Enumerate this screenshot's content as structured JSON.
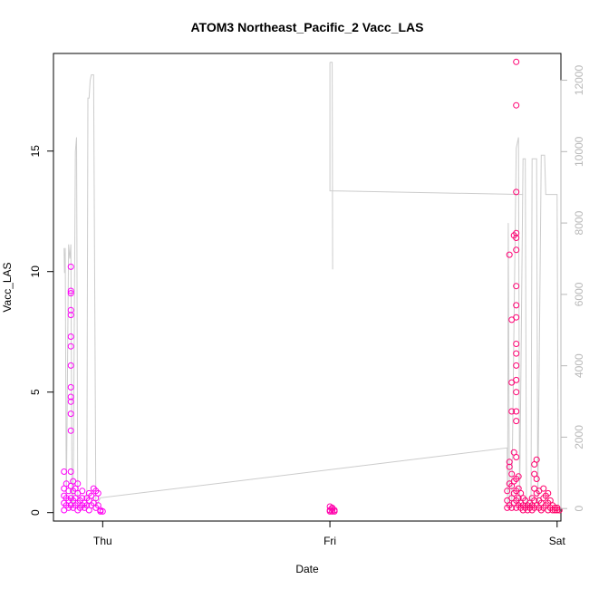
{
  "chart_data": {
    "type": "scatter",
    "title": "ATOM3 Northeast_Pacific_2 Vacc_LAS",
    "xlabel": "Date",
    "ylabel": "Vacc_LAS",
    "x_ticks": [
      "Thu",
      "Fri",
      "Sat"
    ],
    "x_range_days": [
      3.7833,
      6.0167
    ],
    "y_left": {
      "lim": [
        -0.35,
        19.05
      ],
      "ticks": [
        0,
        5,
        10,
        15
      ]
    },
    "y_right": {
      "lim": [
        -350,
        12750
      ],
      "ticks": [
        0,
        2000,
        4000,
        6000,
        8000,
        10000,
        12000
      ],
      "color": "#b8b8b8"
    },
    "grid": false,
    "legend": "none",
    "series": [
      {
        "role": "points",
        "axis": "left",
        "marker": "open-circle",
        "color_start": "#ff00ff",
        "color_end": "#ff0066",
        "points": [
          [
            3.83,
            0.1
          ],
          [
            3.83,
            0.4
          ],
          [
            3.83,
            0.7
          ],
          [
            3.83,
            1.0
          ],
          [
            3.83,
            1.7
          ],
          [
            3.84,
            0.3
          ],
          [
            3.84,
            0.6
          ],
          [
            3.84,
            1.2
          ],
          [
            3.85,
            0.2
          ],
          [
            3.85,
            0.5
          ],
          [
            3.85,
            0.9
          ],
          [
            3.86,
            0.3
          ],
          [
            3.86,
            0.6
          ],
          [
            3.86,
            1.1
          ],
          [
            3.86,
            1.7
          ],
          [
            3.86,
            3.4
          ],
          [
            3.86,
            4.1
          ],
          [
            3.86,
            4.6
          ],
          [
            3.86,
            4.8
          ],
          [
            3.86,
            5.2
          ],
          [
            3.86,
            6.1
          ],
          [
            3.86,
            6.9
          ],
          [
            3.86,
            7.3
          ],
          [
            3.86,
            8.2
          ],
          [
            3.86,
            8.4
          ],
          [
            3.86,
            9.1
          ],
          [
            3.86,
            9.2
          ],
          [
            3.86,
            10.2
          ],
          [
            3.87,
            0.2
          ],
          [
            3.87,
            0.5
          ],
          [
            3.87,
            0.9
          ],
          [
            3.87,
            1.3
          ],
          [
            3.88,
            0.3
          ],
          [
            3.88,
            0.6
          ],
          [
            3.88,
            1.0
          ],
          [
            3.89,
            0.1
          ],
          [
            3.89,
            0.4
          ],
          [
            3.89,
            0.8
          ],
          [
            3.89,
            1.2
          ],
          [
            3.9,
            0.2
          ],
          [
            3.9,
            0.5
          ],
          [
            3.91,
            0.3
          ],
          [
            3.91,
            0.6
          ],
          [
            3.91,
            0.9
          ],
          [
            3.92,
            0.2
          ],
          [
            3.92,
            0.4
          ],
          [
            3.93,
            0.3
          ],
          [
            3.93,
            0.6
          ],
          [
            3.94,
            0.1
          ],
          [
            3.94,
            0.5
          ],
          [
            3.94,
            0.8
          ],
          [
            3.95,
            0.3
          ],
          [
            3.95,
            0.7
          ],
          [
            3.96,
            0.4
          ],
          [
            3.96,
            1.0
          ],
          [
            3.97,
            0.2
          ],
          [
            3.97,
            0.6
          ],
          [
            3.97,
            0.9
          ],
          [
            3.98,
            0.3
          ],
          [
            3.98,
            0.8
          ],
          [
            3.99,
            0.1
          ],
          [
            3.99,
            0.05
          ],
          [
            4.0,
            0.05
          ],
          [
            5.0,
            0.05
          ],
          [
            5.0,
            0.1
          ],
          [
            5.01,
            0.15
          ],
          [
            5.01,
            0.2
          ],
          [
            5.02,
            0.1
          ],
          [
            5.02,
            0.05
          ],
          [
            5.0,
            0.25
          ],
          [
            5.01,
            0.05
          ],
          [
            5.78,
            0.2
          ],
          [
            5.78,
            0.5
          ],
          [
            5.78,
            0.9
          ],
          [
            5.79,
            0.3
          ],
          [
            5.79,
            1.2
          ],
          [
            5.79,
            1.9
          ],
          [
            5.79,
            2.1
          ],
          [
            5.79,
            10.7
          ],
          [
            5.8,
            0.2
          ],
          [
            5.8,
            0.6
          ],
          [
            5.8,
            1.1
          ],
          [
            5.8,
            1.6
          ],
          [
            5.8,
            4.2
          ],
          [
            5.8,
            5.4
          ],
          [
            5.8,
            8.0
          ],
          [
            5.81,
            0.4
          ],
          [
            5.81,
            0.8
          ],
          [
            5.81,
            1.3
          ],
          [
            5.81,
            2.5
          ],
          [
            5.81,
            11.5
          ],
          [
            5.82,
            0.2
          ],
          [
            5.82,
            0.5
          ],
          [
            5.82,
            0.9
          ],
          [
            5.82,
            1.4
          ],
          [
            5.82,
            2.3
          ],
          [
            5.82,
            3.8
          ],
          [
            5.82,
            4.2
          ],
          [
            5.82,
            5.0
          ],
          [
            5.82,
            5.5
          ],
          [
            5.82,
            6.1
          ],
          [
            5.82,
            6.6
          ],
          [
            5.82,
            7.0
          ],
          [
            5.82,
            8.1
          ],
          [
            5.82,
            8.6
          ],
          [
            5.82,
            9.4
          ],
          [
            5.82,
            10.9
          ],
          [
            5.82,
            11.4
          ],
          [
            5.82,
            11.6
          ],
          [
            5.82,
            13.3
          ],
          [
            5.82,
            16.9
          ],
          [
            5.82,
            18.7
          ],
          [
            5.83,
            0.3
          ],
          [
            5.83,
            0.6
          ],
          [
            5.83,
            1.0
          ],
          [
            5.83,
            1.5
          ],
          [
            5.84,
            0.2
          ],
          [
            5.84,
            0.4
          ],
          [
            5.84,
            0.8
          ],
          [
            5.85,
            0.1
          ],
          [
            5.85,
            0.3
          ],
          [
            5.85,
            0.6
          ],
          [
            5.86,
            0.2
          ],
          [
            5.86,
            0.5
          ],
          [
            5.87,
            0.1
          ],
          [
            5.87,
            0.3
          ],
          [
            5.88,
            0.2
          ],
          [
            5.88,
            0.4
          ],
          [
            5.89,
            0.1
          ],
          [
            5.89,
            0.3
          ],
          [
            5.89,
            0.6
          ],
          [
            5.9,
            0.2
          ],
          [
            5.9,
            0.5
          ],
          [
            5.9,
            1.0
          ],
          [
            5.9,
            1.6
          ],
          [
            5.9,
            2.0
          ],
          [
            5.91,
            0.3
          ],
          [
            5.91,
            0.8
          ],
          [
            5.91,
            1.4
          ],
          [
            5.91,
            2.2
          ],
          [
            5.92,
            0.2
          ],
          [
            5.92,
            0.5
          ],
          [
            5.92,
            0.9
          ],
          [
            5.93,
            0.1
          ],
          [
            5.93,
            0.4
          ],
          [
            5.94,
            0.2
          ],
          [
            5.94,
            0.6
          ],
          [
            5.94,
            1.0
          ],
          [
            5.95,
            0.3
          ],
          [
            5.95,
            0.7
          ],
          [
            5.96,
            0.1
          ],
          [
            5.96,
            0.4
          ],
          [
            5.96,
            0.8
          ],
          [
            5.97,
            0.2
          ],
          [
            5.97,
            0.5
          ],
          [
            5.98,
            0.1
          ],
          [
            5.98,
            0.3
          ],
          [
            5.99,
            0.1
          ],
          [
            5.99,
            0.2
          ],
          [
            6.0,
            0.1
          ],
          [
            6.0,
            0.2
          ],
          [
            6.01,
            0.1
          ]
        ]
      },
      {
        "role": "line",
        "axis": "right",
        "color": "#cccccc",
        "points": [
          [
            3.83,
            7300
          ],
          [
            3.832,
            6600
          ],
          [
            3.835,
            7300
          ],
          [
            3.84,
            50
          ],
          [
            3.85,
            7400
          ],
          [
            3.855,
            7000
          ],
          [
            3.86,
            7400
          ],
          [
            3.865,
            50
          ],
          [
            3.87,
            50
          ],
          [
            3.88,
            10000
          ],
          [
            3.885,
            10400
          ],
          [
            3.89,
            50
          ],
          [
            3.93,
            50
          ],
          [
            3.935,
            11500
          ],
          [
            3.94,
            11500
          ],
          [
            3.945,
            12000
          ],
          [
            3.95,
            12150
          ],
          [
            3.96,
            12150
          ],
          [
            3.97,
            50
          ],
          [
            3.99,
            300
          ],
          [
            5.78,
            1700
          ],
          [
            5.782,
            50
          ],
          [
            5.785,
            8000
          ],
          [
            5.79,
            50
          ],
          [
            5.8,
            50
          ],
          [
            5.82,
            10100
          ],
          [
            5.83,
            10400
          ],
          [
            5.835,
            50
          ],
          [
            5.85,
            9800
          ],
          [
            5.86,
            9800
          ],
          [
            5.865,
            50
          ],
          [
            5.885,
            50
          ],
          [
            5.89,
            9800
          ],
          [
            5.91,
            9800
          ],
          [
            5.915,
            50
          ],
          [
            5.93,
            9900
          ],
          [
            5.945,
            9900
          ],
          [
            5.95,
            8800
          ],
          [
            6.0,
            8800
          ],
          [
            6.005,
            50
          ]
        ],
        "breaks_after_index": [
          19
        ],
        "extra_segments": [
          {
            "points": [
              [
                5.0,
                12500
              ],
              [
                5.01,
                12500
              ],
              [
                5.012,
                6700
              ]
            ]
          },
          {
            "points": [
              [
                5.0,
                12500
              ],
              [
                5.0,
                8900
              ],
              [
                5.85,
                8800
              ]
            ]
          }
        ]
      }
    ]
  }
}
